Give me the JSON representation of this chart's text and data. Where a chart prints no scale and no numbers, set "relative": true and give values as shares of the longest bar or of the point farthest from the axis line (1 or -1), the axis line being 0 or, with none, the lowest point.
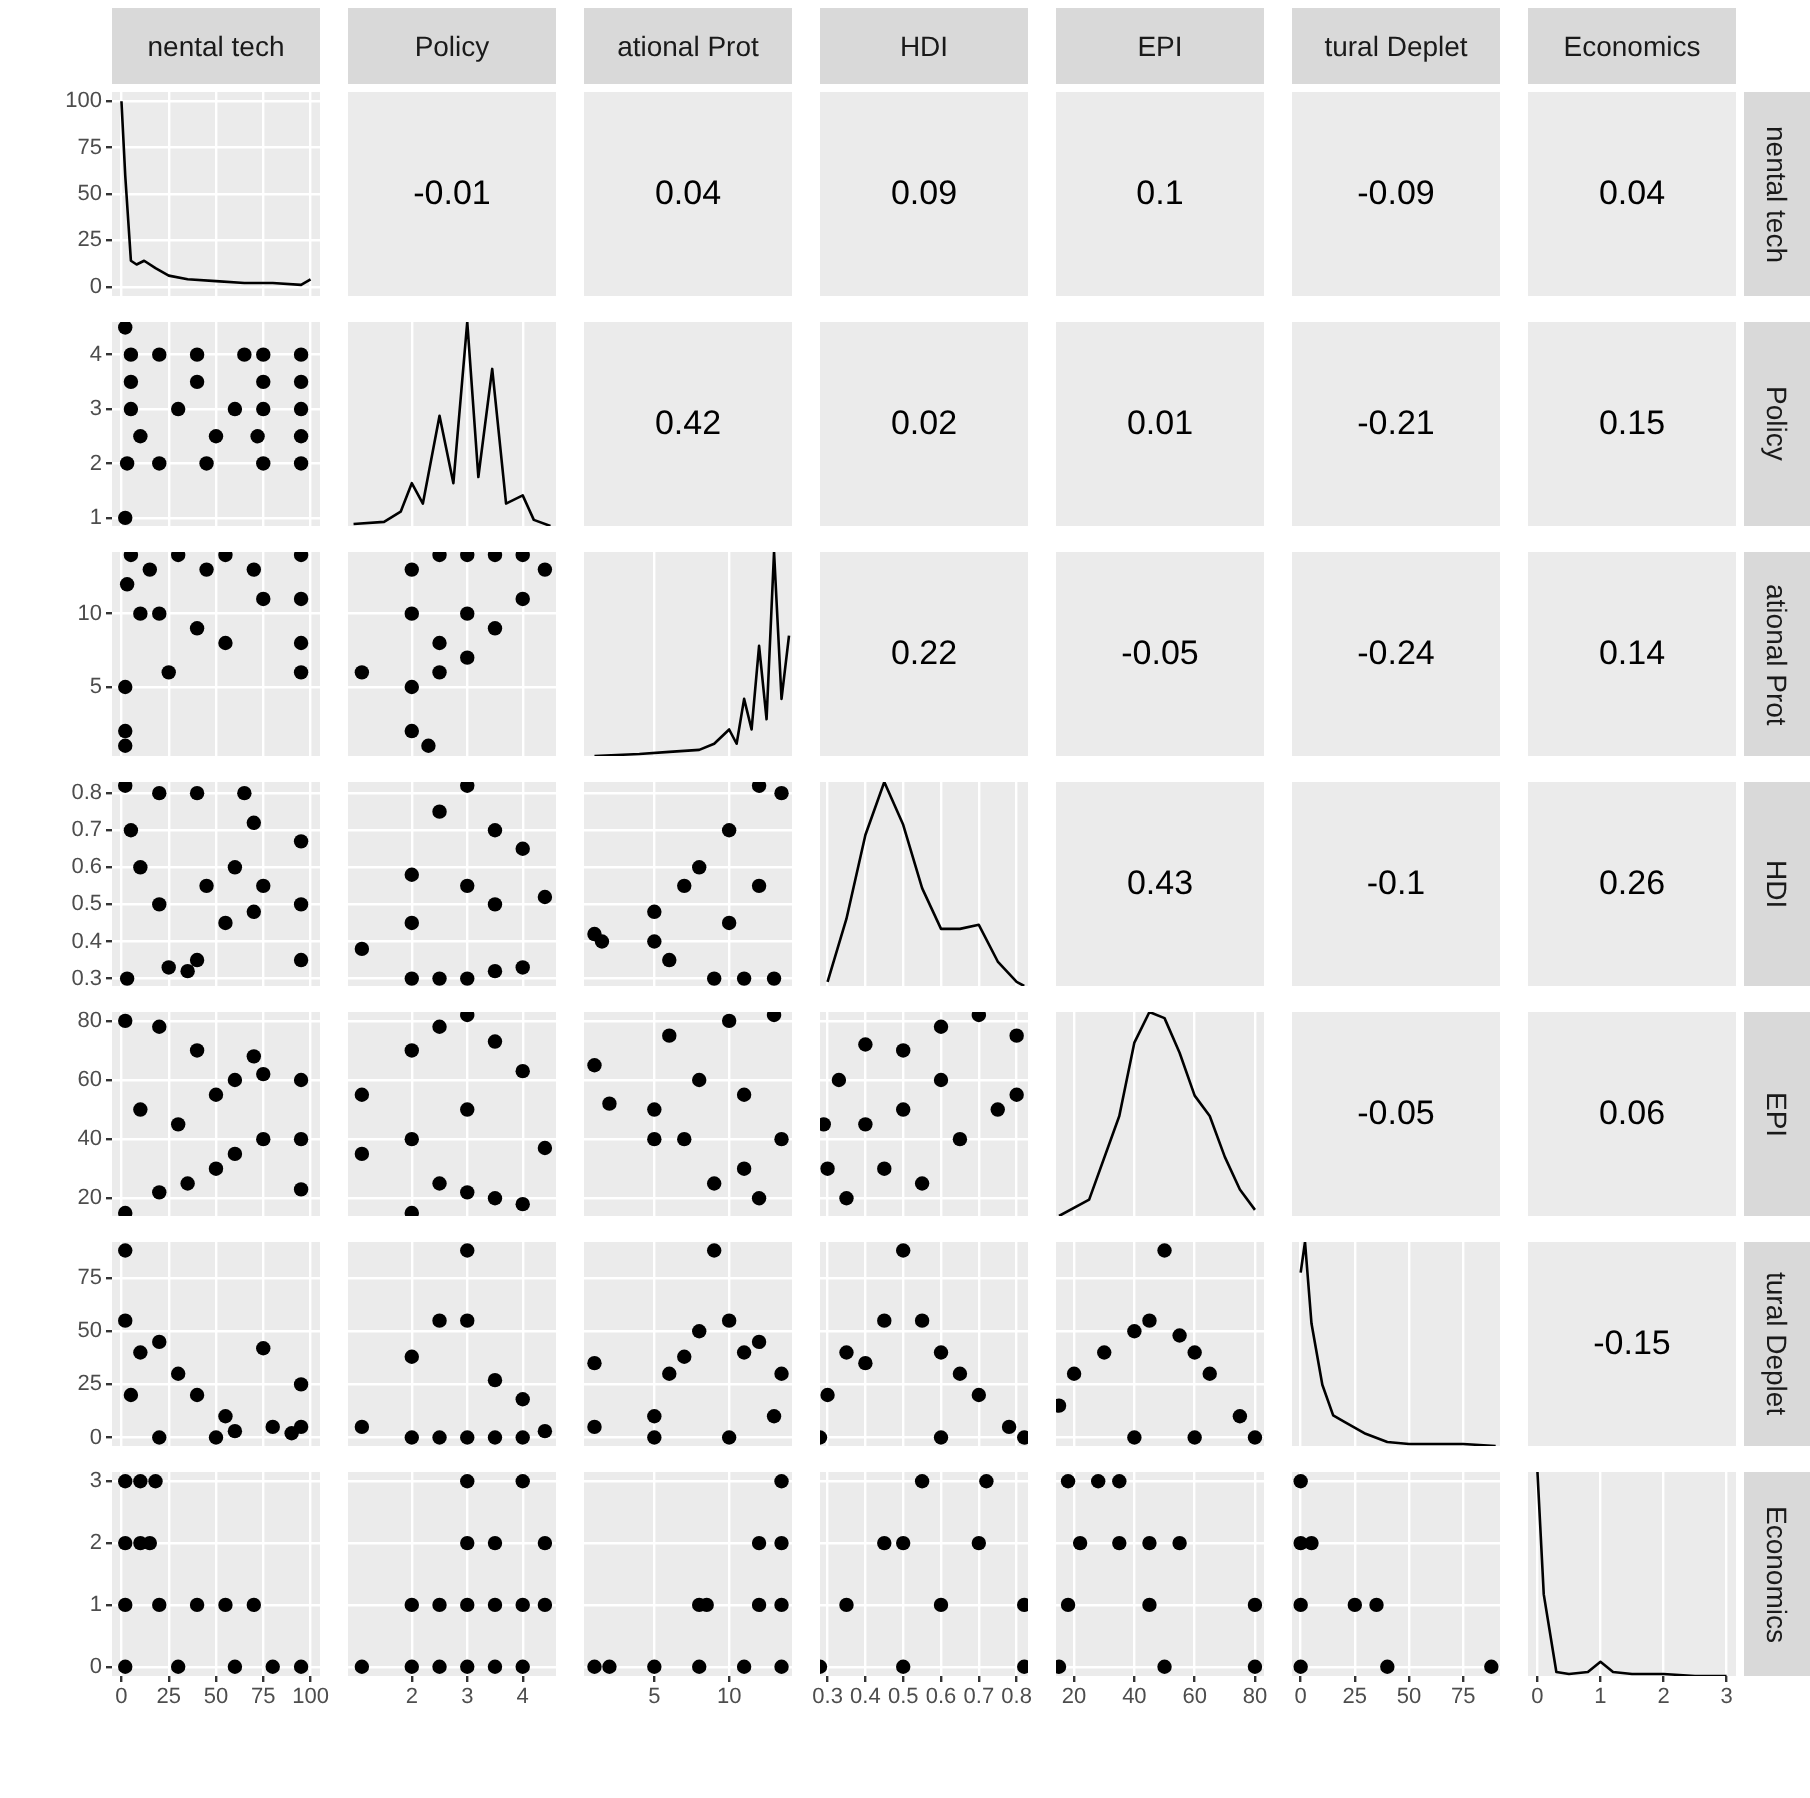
{
  "chart_data": [
    {
      "type": "other",
      "annotations": [
        "-0.01",
        "0.04",
        "0.09",
        "0.1",
        "-0.09",
        "0.04",
        "0.42",
        "0.02",
        "0.01",
        "-0.21",
        "0.15",
        "0.22",
        "-0.05",
        "-0.24",
        "0.14",
        "0.43",
        "-0.1",
        "0.26",
        "-0.05",
        "0.06",
        "-0.15"
      ]
    },
    {
      "type": "line",
      "title": "nental tech",
      "y2label": "nental tech",
      "x": [
        0,
        2,
        5,
        8,
        12,
        18,
        25,
        35,
        50,
        65,
        80,
        95,
        100
      ],
      "values": [
        100,
        60,
        14,
        12,
        14,
        10,
        6,
        4,
        3,
        2,
        2,
        1,
        4
      ],
      "color": "#000000",
      "xlim": [
        -5,
        105
      ],
      "xticks": [
        0,
        25,
        50,
        75,
        100
      ],
      "ylim": [
        -5,
        105
      ],
      "yticks": [
        0,
        25,
        50,
        75,
        100
      ],
      "grid": true,
      "tick_labels": "y"
    },
    {
      "type": "scatter",
      "x": [
        2,
        2,
        5,
        20,
        40,
        65,
        75,
        95,
        5,
        40,
        75,
        95,
        5,
        30,
        60,
        75,
        95,
        10,
        50,
        72,
        95,
        3,
        20,
        45,
        75,
        95
      ],
      "values": [
        4.5,
        1,
        4,
        4,
        4,
        4,
        4,
        4,
        3.5,
        3.5,
        3.5,
        3.5,
        3,
        3,
        3,
        3,
        3,
        2.5,
        2.5,
        2.5,
        2.5,
        2,
        2,
        2,
        2,
        2
      ],
      "color": "#000000",
      "marker": "circle",
      "xlim": [
        -5,
        105
      ],
      "xticks": [
        0,
        25,
        50,
        75,
        100
      ],
      "ylim": [
        0.85,
        4.6
      ],
      "yticks": [
        1,
        2,
        3,
        4
      ],
      "grid": true,
      "tick_labels": "y"
    },
    {
      "type": "line",
      "title": "Policy",
      "y2label": "Policy",
      "x": [
        0.95,
        1.5,
        1.8,
        2,
        2.2,
        2.5,
        2.75,
        3,
        3.2,
        3.45,
        3.7,
        4,
        4.2,
        4.5
      ],
      "values": [
        0.01,
        0.02,
        0.07,
        0.21,
        0.11,
        0.54,
        0.21,
        1,
        0.24,
        0.77,
        0.11,
        0.15,
        0.03,
        0
      ],
      "color": "#000000",
      "relative": true,
      "xlim": [
        0.85,
        4.6
      ],
      "xticks": [
        2,
        3,
        4
      ],
      "grid": "x",
      "tick_labels": false
    },
    {
      "type": "scatter",
      "x": [
        5,
        30,
        55,
        70,
        75,
        95,
        95,
        95,
        95,
        3,
        20,
        40,
        55,
        25,
        2,
        2,
        2,
        10,
        15,
        45
      ],
      "values": [
        14,
        14,
        14,
        13,
        11,
        14,
        11,
        8,
        6,
        12,
        10,
        9,
        8,
        6,
        5,
        2,
        1,
        10,
        13,
        13
      ],
      "color": "#000000",
      "marker": "circle",
      "xlim": [
        -5,
        105
      ],
      "xticks": [
        0,
        25,
        50,
        75,
        100
      ],
      "ylim": [
        0.3,
        14.2
      ],
      "yticks": [
        5,
        10
      ],
      "grid": true,
      "tick_labels": "y"
    },
    {
      "type": "scatter",
      "x": [
        1.1,
        2,
        2,
        2,
        2,
        2.3,
        2.5,
        2.5,
        2.5,
        3,
        3,
        3,
        3.5,
        3.5,
        4,
        4,
        4.4
      ],
      "values": [
        6,
        13,
        10,
        5,
        2,
        1,
        14,
        8,
        6,
        14,
        10,
        7,
        14,
        9,
        14,
        11,
        13
      ],
      "color": "#000000",
      "marker": "circle",
      "xlim": [
        0.85,
        4.6
      ],
      "xticks": [
        2,
        3,
        4
      ],
      "ylim": [
        0.3,
        14.2
      ],
      "yticks": [
        5,
        10
      ],
      "grid": true,
      "tick_labels": false
    },
    {
      "type": "line",
      "title": "ational Prot",
      "y2label": "ational Prot",
      "x": [
        1,
        4,
        6,
        8,
        9,
        10,
        10.5,
        11,
        11.5,
        12,
        12.5,
        13,
        13.5,
        14
      ],
      "values": [
        0,
        0.01,
        0.02,
        0.03,
        0.06,
        0.13,
        0.06,
        0.28,
        0.13,
        0.54,
        0.18,
        1,
        0.28,
        0.59
      ],
      "color": "#000000",
      "relative": true,
      "xlim": [
        0.3,
        14.2
      ],
      "xticks": [
        5,
        10
      ],
      "grid": "x",
      "tick_labels": false
    },
    {
      "type": "scatter",
      "x": [
        2,
        20,
        40,
        65,
        3,
        25,
        35,
        40,
        45,
        55,
        60,
        70,
        75,
        70,
        10,
        20,
        95,
        95,
        95,
        5
      ],
      "values": [
        0.82,
        0.8,
        0.8,
        0.8,
        0.3,
        0.33,
        0.32,
        0.35,
        0.55,
        0.45,
        0.6,
        0.72,
        0.55,
        0.48,
        0.6,
        0.5,
        0.67,
        0.5,
        0.35,
        0.7
      ],
      "color": "#000000",
      "marker": "circle",
      "xlim": [
        -5,
        105
      ],
      "xticks": [
        0,
        25,
        50,
        75,
        100
      ],
      "ylim": [
        0.28,
        0.83
      ],
      "yticks": [
        0.3,
        0.4,
        0.5,
        0.6,
        0.7,
        0.8
      ],
      "grid": true,
      "tick_labels": "y"
    },
    {
      "type": "scatter",
      "x": [
        1.1,
        2,
        2,
        2.5,
        2.5,
        3,
        3,
        3.5,
        3.5,
        4,
        4,
        4.4,
        2,
        3,
        3.5
      ],
      "values": [
        0.38,
        0.3,
        0.58,
        0.3,
        0.75,
        0.3,
        0.82,
        0.32,
        0.7,
        0.33,
        0.65,
        0.52,
        0.45,
        0.55,
        0.5
      ],
      "color": "#000000",
      "marker": "circle",
      "xlim": [
        0.85,
        4.6
      ],
      "xticks": [
        2,
        3,
        4
      ],
      "ylim": [
        0.28,
        0.83
      ],
      "yticks": [
        0.3,
        0.4,
        0.5,
        0.6,
        0.7,
        0.8
      ],
      "grid": true,
      "tick_labels": false
    },
    {
      "type": "scatter",
      "x": [
        1,
        1.5,
        5,
        5,
        6,
        7,
        8,
        9,
        10,
        11,
        12,
        13,
        13.5,
        12,
        10
      ],
      "values": [
        0.42,
        0.4,
        0.4,
        0.48,
        0.35,
        0.55,
        0.6,
        0.3,
        0.7,
        0.3,
        0.82,
        0.3,
        0.8,
        0.55,
        0.45
      ],
      "color": "#000000",
      "marker": "circle",
      "xlim": [
        0.3,
        14.2
      ],
      "xticks": [
        5,
        10
      ],
      "ylim": [
        0.28,
        0.83
      ],
      "yticks": [
        0.3,
        0.4,
        0.5,
        0.6,
        0.7,
        0.8
      ],
      "grid": true,
      "tick_labels": false
    },
    {
      "type": "line",
      "title": "HDI",
      "y2label": "HDI",
      "x": [
        0.3,
        0.35,
        0.4,
        0.45,
        0.5,
        0.55,
        0.6,
        0.65,
        0.7,
        0.75,
        0.8,
        0.82
      ],
      "values": [
        0.02,
        0.33,
        0.74,
        1,
        0.79,
        0.48,
        0.28,
        0.28,
        0.3,
        0.12,
        0.02,
        0
      ],
      "color": "#000000",
      "relative": true,
      "xlim": [
        0.28,
        0.83
      ],
      "xticks": [
        0.3,
        0.4,
        0.5,
        0.6,
        0.7,
        0.8
      ],
      "grid": "x",
      "tick_labels": false
    },
    {
      "type": "scatter",
      "x": [
        2,
        2,
        20,
        40,
        50,
        60,
        70,
        75,
        75,
        60,
        50,
        35,
        20,
        95,
        95,
        95,
        10,
        30
      ],
      "values": [
        15,
        80,
        78,
        70,
        55,
        60,
        68,
        62,
        40,
        35,
        30,
        25,
        22,
        60,
        40,
        23,
        50,
        45
      ],
      "color": "#000000",
      "marker": "circle",
      "xlim": [
        -5,
        105
      ],
      "xticks": [
        0,
        25,
        50,
        75,
        100
      ],
      "ylim": [
        14,
        83
      ],
      "yticks": [
        20,
        40,
        60,
        80
      ],
      "grid": true,
      "tick_labels": "y"
    },
    {
      "type": "scatter",
      "x": [
        1.1,
        1.1,
        2,
        2,
        2.5,
        2.5,
        3,
        3,
        3.5,
        3.5,
        4,
        4,
        4.4,
        3,
        2
      ],
      "values": [
        55,
        35,
        70,
        15,
        78,
        25,
        82,
        22,
        73,
        20,
        63,
        18,
        37,
        50,
        40
      ],
      "color": "#000000",
      "marker": "circle",
      "xlim": [
        0.85,
        4.6
      ],
      "xticks": [
        2,
        3,
        4
      ],
      "ylim": [
        14,
        83
      ],
      "yticks": [
        20,
        40,
        60,
        80
      ],
      "grid": true,
      "tick_labels": false
    },
    {
      "type": "scatter",
      "x": [
        1,
        2,
        5,
        5,
        6,
        7,
        8,
        9,
        10,
        11,
        12,
        13,
        13.5,
        11
      ],
      "values": [
        65,
        52,
        50,
        40,
        75,
        40,
        60,
        25,
        80,
        30,
        20,
        82,
        40,
        55
      ],
      "color": "#000000",
      "marker": "circle",
      "xlim": [
        0.3,
        14.2
      ],
      "xticks": [
        5,
        10
      ],
      "ylim": [
        14,
        83
      ],
      "yticks": [
        20,
        40,
        60,
        80
      ],
      "grid": true,
      "tick_labels": false
    },
    {
      "type": "scatter",
      "x": [
        0.29,
        0.3,
        0.33,
        0.35,
        0.4,
        0.45,
        0.5,
        0.55,
        0.6,
        0.65,
        0.7,
        0.75,
        0.8,
        0.8,
        0.5,
        0.6,
        0.4
      ],
      "values": [
        45,
        30,
        60,
        20,
        72,
        30,
        70,
        25,
        78,
        40,
        82,
        50,
        75,
        55,
        50,
        60,
        45
      ],
      "color": "#000000",
      "marker": "circle",
      "xlim": [
        0.28,
        0.83
      ],
      "xticks": [
        0.3,
        0.4,
        0.5,
        0.6,
        0.7,
        0.8
      ],
      "ylim": [
        14,
        83
      ],
      "yticks": [
        20,
        40,
        60,
        80
      ],
      "grid": true,
      "tick_labels": false
    },
    {
      "type": "line",
      "title": "EPI",
      "y2label": "EPI",
      "x": [
        15,
        25,
        35,
        40,
        45,
        50,
        55,
        60,
        65,
        70,
        75,
        80
      ],
      "values": [
        0,
        0.08,
        0.49,
        0.85,
        1,
        0.97,
        0.8,
        0.59,
        0.49,
        0.29,
        0.13,
        0.03
      ],
      "color": "#000000",
      "relative": true,
      "xlim": [
        14,
        83
      ],
      "xticks": [
        20,
        40,
        60,
        80
      ],
      "grid": "x",
      "tick_labels": false
    },
    {
      "type": "scatter",
      "x": [
        2,
        2,
        10,
        20,
        30,
        40,
        55,
        75,
        80,
        90,
        95,
        95,
        50,
        20,
        5,
        60
      ],
      "values": [
        88,
        55,
        40,
        45,
        30,
        20,
        10,
        42,
        5,
        2,
        25,
        5,
        0,
        0,
        20,
        3
      ],
      "color": "#000000",
      "marker": "circle",
      "xlim": [
        -5,
        105
      ],
      "xticks": [
        0,
        25,
        50,
        75,
        100
      ],
      "ylim": [
        -4,
        92
      ],
      "yticks": [
        0,
        25,
        50,
        75
      ],
      "grid": true,
      "tick_labels": "y"
    },
    {
      "type": "scatter",
      "x": [
        1.1,
        2,
        2,
        2.5,
        2.5,
        3,
        3,
        3,
        3.5,
        3.5,
        4,
        4,
        4.4
      ],
      "values": [
        5,
        38,
        0,
        55,
        0,
        88,
        55,
        0,
        27,
        0,
        18,
        0,
        3
      ],
      "color": "#000000",
      "marker": "circle",
      "xlim": [
        0.85,
        4.6
      ],
      "xticks": [
        2,
        3,
        4
      ],
      "ylim": [
        -4,
        92
      ],
      "yticks": [
        0,
        25,
        50,
        75
      ],
      "grid": true,
      "tick_labels": false
    },
    {
      "type": "scatter",
      "x": [
        1,
        1,
        5,
        6,
        7,
        8,
        9,
        10,
        11,
        12,
        13,
        13.5,
        10,
        5
      ],
      "values": [
        35,
        5,
        10,
        30,
        38,
        50,
        88,
        55,
        40,
        45,
        10,
        30,
        0,
        0
      ],
      "color": "#000000",
      "marker": "circle",
      "xlim": [
        0.3,
        14.2
      ],
      "xticks": [
        5,
        10
      ],
      "ylim": [
        -4,
        92
      ],
      "yticks": [
        0,
        25,
        50,
        75
      ],
      "grid": true,
      "tick_labels": false
    },
    {
      "type": "scatter",
      "x": [
        0.28,
        0.3,
        0.35,
        0.4,
        0.45,
        0.5,
        0.55,
        0.6,
        0.65,
        0.7,
        0.78,
        0.82,
        0.6
      ],
      "values": [
        0,
        20,
        40,
        35,
        55,
        88,
        55,
        40,
        30,
        20,
        5,
        0,
        0
      ],
      "color": "#000000",
      "marker": "circle",
      "xlim": [
        0.28,
        0.83
      ],
      "xticks": [
        0.3,
        0.4,
        0.5,
        0.6,
        0.7,
        0.8
      ],
      "ylim": [
        -4,
        92
      ],
      "yticks": [
        0,
        25,
        50,
        75
      ],
      "grid": true,
      "tick_labels": false
    },
    {
      "type": "scatter",
      "x": [
        15,
        20,
        30,
        40,
        45,
        50,
        55,
        60,
        65,
        75,
        80,
        40,
        60
      ],
      "values": [
        15,
        30,
        40,
        50,
        55,
        88,
        48,
        40,
        30,
        10,
        0,
        0,
        0
      ],
      "color": "#000000",
      "marker": "circle",
      "xlim": [
        14,
        83
      ],
      "xticks": [
        20,
        40,
        60,
        80
      ],
      "ylim": [
        -4,
        92
      ],
      "yticks": [
        0,
        25,
        50,
        75
      ],
      "grid": true,
      "tick_labels": false
    },
    {
      "type": "line",
      "title": "tural Deplet",
      "y2label": "tural Deplet",
      "x": [
        0,
        2,
        5,
        10,
        15,
        20,
        30,
        40,
        50,
        60,
        75,
        90
      ],
      "values": [
        0.85,
        1,
        0.6,
        0.3,
        0.15,
        0.12,
        0.06,
        0.02,
        0.01,
        0.01,
        0.01,
        0
      ],
      "color": "#000000",
      "relative": true,
      "xlim": [
        -4,
        92
      ],
      "xticks": [
        0,
        25,
        50,
        75
      ],
      "grid": "x",
      "tick_labels": false
    },
    {
      "type": "scatter",
      "x": [
        2,
        10,
        18,
        2,
        10,
        15,
        2,
        20,
        40,
        55,
        70,
        2,
        30,
        60,
        80,
        95
      ],
      "values": [
        3,
        3,
        3,
        2,
        2,
        2,
        1,
        1,
        1,
        1,
        1,
        0,
        0,
        0,
        0,
        0
      ],
      "color": "#000000",
      "marker": "circle",
      "xlim": [
        -5,
        105
      ],
      "xticks": [
        0,
        25,
        50,
        75,
        100
      ],
      "ylim": [
        -0.15,
        3.15
      ],
      "yticks": [
        0,
        1,
        2,
        3
      ],
      "grid": true
    },
    {
      "type": "scatter",
      "x": [
        1.1,
        2,
        2.5,
        3,
        3.5,
        4,
        2,
        2.5,
        3,
        3.5,
        4,
        4.4,
        3,
        3.5,
        4.4,
        3,
        4
      ],
      "values": [
        0,
        0,
        0,
        0,
        0,
        0,
        1,
        1,
        1,
        1,
        1,
        1,
        2,
        2,
        2,
        3,
        3
      ],
      "color": "#000000",
      "marker": "circle",
      "xlim": [
        0.85,
        4.6
      ],
      "xticks": [
        2,
        3,
        4
      ],
      "ylim": [
        -0.15,
        3.15
      ],
      "yticks": [
        0,
        1,
        2,
        3
      ],
      "grid": true,
      "tick_labels": "x"
    },
    {
      "type": "scatter",
      "x": [
        1,
        2,
        5,
        8,
        11,
        13.5,
        8,
        8.5,
        12,
        13.5,
        12,
        13.5,
        13.5
      ],
      "values": [
        0,
        0,
        0,
        0,
        0,
        0,
        1,
        1,
        1,
        1,
        2,
        2,
        3
      ],
      "color": "#000000",
      "marker": "circle",
      "xlim": [
        0.3,
        14.2
      ],
      "xticks": [
        5,
        10
      ],
      "ylim": [
        -0.15,
        3.15
      ],
      "yticks": [
        0,
        1,
        2,
        3
      ],
      "grid": true,
      "tick_labels": "x"
    },
    {
      "type": "scatter",
      "x": [
        0.28,
        0.5,
        0.82,
        0.35,
        0.6,
        0.82,
        0.45,
        0.5,
        0.7,
        0.55,
        0.72
      ],
      "values": [
        0,
        0,
        0,
        1,
        1,
        1,
        2,
        2,
        2,
        3,
        3
      ],
      "color": "#000000",
      "marker": "circle",
      "xlim": [
        0.28,
        0.83
      ],
      "xticks": [
        0.3,
        0.4,
        0.5,
        0.6,
        0.7,
        0.8
      ],
      "ylim": [
        -0.15,
        3.15
      ],
      "yticks": [
        0,
        1,
        2,
        3
      ],
      "grid": true,
      "tick_labels": "x"
    },
    {
      "type": "scatter",
      "x": [
        15,
        50,
        80,
        18,
        45,
        80,
        22,
        35,
        45,
        55,
        18,
        28,
        35
      ],
      "values": [
        0,
        0,
        0,
        1,
        1,
        1,
        2,
        2,
        2,
        2,
        3,
        3,
        3
      ],
      "color": "#000000",
      "marker": "circle",
      "xlim": [
        14,
        83
      ],
      "xticks": [
        20,
        40,
        60,
        80
      ],
      "ylim": [
        -0.15,
        3.15
      ],
      "yticks": [
        0,
        1,
        2,
        3
      ],
      "grid": true,
      "tick_labels": "x"
    },
    {
      "type": "scatter",
      "x": [
        0,
        0,
        5,
        0,
        25,
        35,
        0,
        40,
        88
      ],
      "values": [
        3,
        2,
        2,
        1,
        1,
        1,
        0,
        0,
        0
      ],
      "color": "#000000",
      "marker": "circle",
      "xlim": [
        -4,
        92
      ],
      "xticks": [
        0,
        25,
        50,
        75
      ],
      "ylim": [
        -0.15,
        3.15
      ],
      "yticks": [
        0,
        1,
        2,
        3
      ],
      "grid": true,
      "tick_labels": "x"
    },
    {
      "type": "line",
      "title": "Economics",
      "y2label": "Economics",
      "x": [
        0,
        0.1,
        0.3,
        0.5,
        0.8,
        1,
        1.2,
        1.5,
        2,
        2.5,
        3
      ],
      "values": [
        1,
        0.4,
        0.02,
        0.01,
        0.02,
        0.07,
        0.02,
        0.01,
        0.01,
        0,
        0
      ],
      "color": "#000000",
      "relative": true,
      "xlim": [
        -0.15,
        3.15
      ],
      "xticks": [
        0,
        1,
        2,
        3
      ],
      "grid": "x",
      "tick_labels": "x"
    }
  ]
}
